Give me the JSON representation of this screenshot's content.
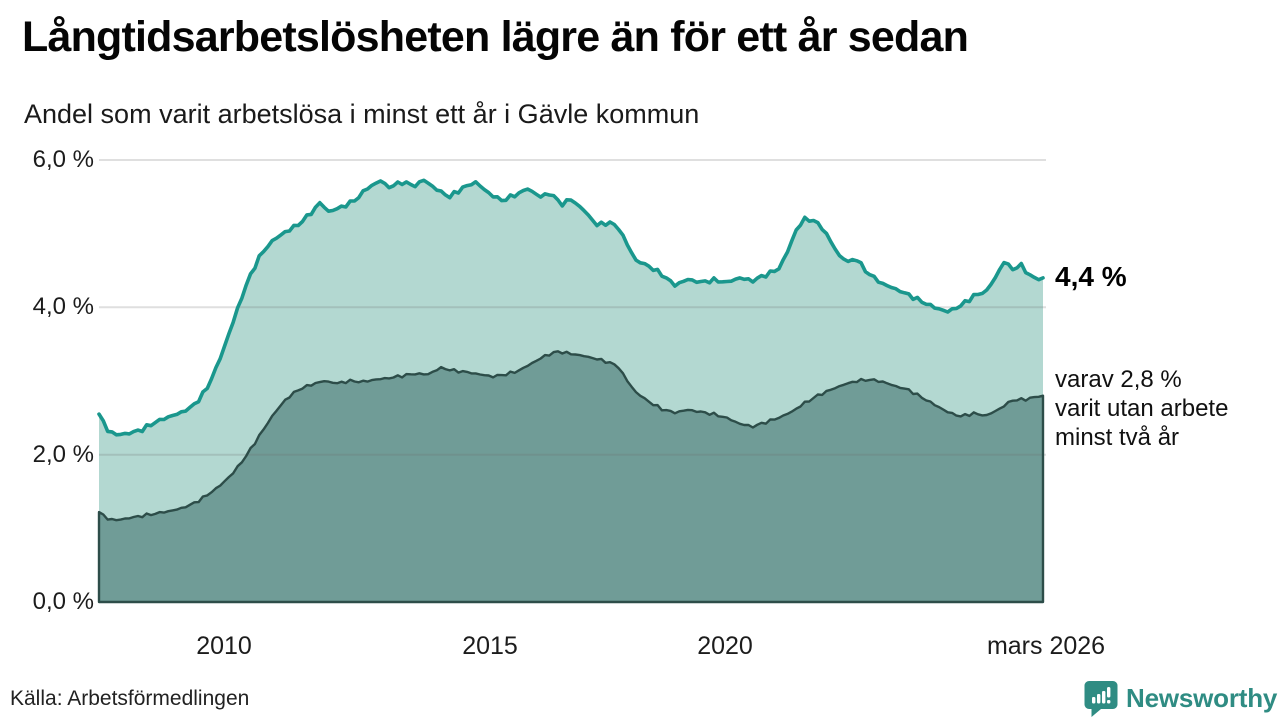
{
  "header": {
    "title": "Långtidsarbetslösheten lägre än för ett år sedan",
    "subtitle": "Andel som varit arbetslösa i minst ett år i Gävle kommun"
  },
  "annotations": {
    "latest_label": "4,4 %",
    "note_lines": [
      "varav 2,8 %",
      "varit utan arbete",
      "minst två år"
    ]
  },
  "footer": {
    "source": "Källa: Arbetsförmedlingen",
    "brand": "Newsworthy",
    "logo_icon": "newsworthy-speech-bubble-bar-chart-icon"
  },
  "colors": {
    "line_total": "#1a978d",
    "fill_total": "#b3d8d1",
    "line_two_year": "#2d4d49",
    "fill_two_year": "#709c97",
    "grid": "#dcdcdc",
    "brand_teal": "#2f8c83",
    "text": "#111111"
  },
  "chart_data": {
    "type": "area",
    "title": "Långtidsarbetslösheten lägre än för ett år sedan",
    "subtitle": "Andel som varit arbetslösa i minst ett år i Gävle kommun",
    "unit": "%",
    "grid": true,
    "legend": "none",
    "xlim": [
      2008.0,
      2026.17
    ],
    "ylim": [
      0,
      6
    ],
    "x_ticks": [
      {
        "label": "2010",
        "t": 2010.0
      },
      {
        "label": "2015",
        "t": 2015.0
      },
      {
        "label": "2020",
        "t": 2020.0
      },
      {
        "label": "mars 2026",
        "t": 2026.17
      }
    ],
    "y_ticks": [
      {
        "label": "6,0 %",
        "value": 6
      },
      {
        "label": "4,0 %",
        "value": 4
      },
      {
        "label": "2,0 %",
        "value": 2
      },
      {
        "label": "0,0 %",
        "value": 0
      }
    ],
    "latest": {
      "total_at_least_one_year": 4.4,
      "at_least_two_years": 2.8,
      "latest_period": "mars 2026"
    },
    "series": [
      {
        "name": "Andel arbetslösa minst ett år",
        "color": "#1a978d",
        "fill": "#b3d8d1",
        "points": [
          [
            2008.0,
            2.55
          ],
          [
            2008.17,
            2.33
          ],
          [
            2008.33,
            2.27
          ],
          [
            2008.58,
            2.29
          ],
          [
            2008.83,
            2.34
          ],
          [
            2009.08,
            2.44
          ],
          [
            2009.33,
            2.51
          ],
          [
            2009.58,
            2.57
          ],
          [
            2009.83,
            2.67
          ],
          [
            2010.08,
            2.9
          ],
          [
            2010.33,
            3.3
          ],
          [
            2010.58,
            3.8
          ],
          [
            2010.83,
            4.3
          ],
          [
            2011.08,
            4.68
          ],
          [
            2011.33,
            4.9
          ],
          [
            2011.58,
            5.02
          ],
          [
            2011.83,
            5.12
          ],
          [
            2012.08,
            5.28
          ],
          [
            2012.25,
            5.42
          ],
          [
            2012.42,
            5.3
          ],
          [
            2012.67,
            5.36
          ],
          [
            2012.92,
            5.45
          ],
          [
            2013.17,
            5.62
          ],
          [
            2013.42,
            5.72
          ],
          [
            2013.58,
            5.63
          ],
          [
            2013.83,
            5.7
          ],
          [
            2014.08,
            5.65
          ],
          [
            2014.25,
            5.73
          ],
          [
            2014.5,
            5.6
          ],
          [
            2014.75,
            5.5
          ],
          [
            2015.0,
            5.62
          ],
          [
            2015.25,
            5.7
          ],
          [
            2015.5,
            5.55
          ],
          [
            2015.75,
            5.45
          ],
          [
            2016.0,
            5.52
          ],
          [
            2016.25,
            5.61
          ],
          [
            2016.5,
            5.5
          ],
          [
            2016.67,
            5.55
          ],
          [
            2016.92,
            5.4
          ],
          [
            2017.08,
            5.47
          ],
          [
            2017.33,
            5.32
          ],
          [
            2017.58,
            5.12
          ],
          [
            2017.83,
            5.15
          ],
          [
            2018.0,
            5.08
          ],
          [
            2018.17,
            4.85
          ],
          [
            2018.33,
            4.64
          ],
          [
            2018.58,
            4.56
          ],
          [
            2018.83,
            4.45
          ],
          [
            2019.08,
            4.3
          ],
          [
            2019.33,
            4.38
          ],
          [
            2019.58,
            4.34
          ],
          [
            2019.83,
            4.37
          ],
          [
            2020.08,
            4.34
          ],
          [
            2020.33,
            4.4
          ],
          [
            2020.58,
            4.36
          ],
          [
            2020.83,
            4.44
          ],
          [
            2021.08,
            4.52
          ],
          [
            2021.25,
            4.75
          ],
          [
            2021.42,
            5.05
          ],
          [
            2021.58,
            5.2
          ],
          [
            2021.75,
            5.18
          ],
          [
            2021.92,
            5.08
          ],
          [
            2022.08,
            4.9
          ],
          [
            2022.25,
            4.7
          ],
          [
            2022.42,
            4.62
          ],
          [
            2022.58,
            4.66
          ],
          [
            2022.75,
            4.5
          ],
          [
            2022.92,
            4.4
          ],
          [
            2023.08,
            4.32
          ],
          [
            2023.33,
            4.25
          ],
          [
            2023.58,
            4.17
          ],
          [
            2023.83,
            4.08
          ],
          [
            2024.08,
            4.0
          ],
          [
            2024.33,
            3.94
          ],
          [
            2024.58,
            4.02
          ],
          [
            2024.83,
            4.15
          ],
          [
            2025.08,
            4.22
          ],
          [
            2025.25,
            4.4
          ],
          [
            2025.42,
            4.62
          ],
          [
            2025.58,
            4.52
          ],
          [
            2025.75,
            4.57
          ],
          [
            2025.92,
            4.43
          ],
          [
            2026.08,
            4.38
          ],
          [
            2026.17,
            4.4
          ]
        ]
      },
      {
        "name": "varav arbetslösa minst två år",
        "color": "#2d4d49",
        "fill": "#709c97",
        "points": [
          [
            2008.0,
            1.22
          ],
          [
            2008.17,
            1.13
          ],
          [
            2008.33,
            1.11
          ],
          [
            2008.58,
            1.14
          ],
          [
            2008.83,
            1.17
          ],
          [
            2009.08,
            1.2
          ],
          [
            2009.33,
            1.23
          ],
          [
            2009.58,
            1.27
          ],
          [
            2009.83,
            1.34
          ],
          [
            2010.08,
            1.45
          ],
          [
            2010.33,
            1.58
          ],
          [
            2010.58,
            1.75
          ],
          [
            2010.83,
            1.98
          ],
          [
            2011.08,
            2.25
          ],
          [
            2011.33,
            2.52
          ],
          [
            2011.58,
            2.74
          ],
          [
            2011.83,
            2.88
          ],
          [
            2012.08,
            2.95
          ],
          [
            2012.33,
            3.0
          ],
          [
            2012.58,
            2.97
          ],
          [
            2012.83,
            3.0
          ],
          [
            2013.08,
            2.99
          ],
          [
            2013.33,
            3.02
          ],
          [
            2013.58,
            3.04
          ],
          [
            2013.83,
            3.07
          ],
          [
            2014.08,
            3.1
          ],
          [
            2014.33,
            3.09
          ],
          [
            2014.58,
            3.18
          ],
          [
            2014.83,
            3.14
          ],
          [
            2015.08,
            3.12
          ],
          [
            2015.33,
            3.09
          ],
          [
            2015.58,
            3.06
          ],
          [
            2015.83,
            3.09
          ],
          [
            2016.08,
            3.14
          ],
          [
            2016.33,
            3.24
          ],
          [
            2016.58,
            3.34
          ],
          [
            2016.83,
            3.4
          ],
          [
            2017.08,
            3.37
          ],
          [
            2017.33,
            3.34
          ],
          [
            2017.58,
            3.3
          ],
          [
            2017.83,
            3.25
          ],
          [
            2018.0,
            3.19
          ],
          [
            2018.17,
            3.0
          ],
          [
            2018.33,
            2.85
          ],
          [
            2018.58,
            2.72
          ],
          [
            2018.83,
            2.62
          ],
          [
            2019.08,
            2.57
          ],
          [
            2019.33,
            2.61
          ],
          [
            2019.58,
            2.58
          ],
          [
            2019.83,
            2.55
          ],
          [
            2020.08,
            2.5
          ],
          [
            2020.33,
            2.42
          ],
          [
            2020.58,
            2.38
          ],
          [
            2020.83,
            2.44
          ],
          [
            2021.08,
            2.5
          ],
          [
            2021.33,
            2.58
          ],
          [
            2021.58,
            2.7
          ],
          [
            2021.83,
            2.8
          ],
          [
            2022.08,
            2.88
          ],
          [
            2022.33,
            2.95
          ],
          [
            2022.58,
            3.0
          ],
          [
            2022.83,
            3.02
          ],
          [
            2023.08,
            2.99
          ],
          [
            2023.33,
            2.93
          ],
          [
            2023.58,
            2.88
          ],
          [
            2023.83,
            2.78
          ],
          [
            2024.08,
            2.68
          ],
          [
            2024.33,
            2.58
          ],
          [
            2024.58,
            2.52
          ],
          [
            2024.83,
            2.56
          ],
          [
            2025.08,
            2.53
          ],
          [
            2025.33,
            2.62
          ],
          [
            2025.58,
            2.74
          ],
          [
            2025.83,
            2.75
          ],
          [
            2026.0,
            2.78
          ],
          [
            2026.17,
            2.8
          ]
        ]
      }
    ]
  }
}
